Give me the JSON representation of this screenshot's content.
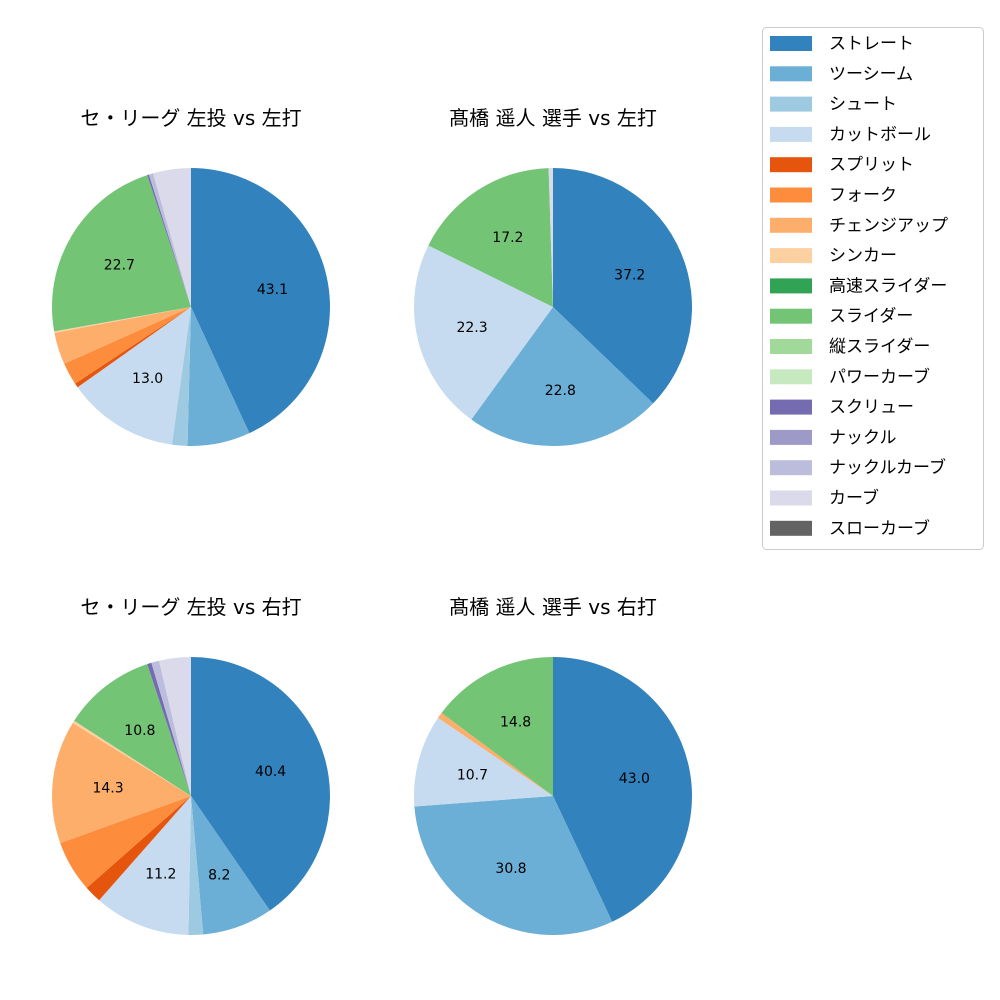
{
  "colors": {
    "ストレート": "#3182bd",
    "ツーシーム": "#6baed6",
    "シュート": "#9ecae1",
    "カットボール": "#c6dbef",
    "スプリット": "#e6550d",
    "フォーク": "#fd8d3c",
    "チェンジアップ": "#fdae6b",
    "シンカー": "#fdd0a2",
    "高速スライダー": "#31a354",
    "スライダー": "#74c476",
    "縦スライダー": "#a1d99b",
    "パワーカーブ": "#c7e9c0",
    "スクリュー": "#756bb1",
    "ナックル": "#9e9ac8",
    "ナックルカーブ": "#bcbddc",
    "カーブ": "#dadaeb",
    "スローカーブ": "#636363"
  },
  "legend": {
    "placement": "top-right",
    "entries": [
      "ストレート",
      "ツーシーム",
      "シュート",
      "カットボール",
      "スプリット",
      "フォーク",
      "チェンジアップ",
      "シンカー",
      "高速スライダー",
      "スライダー",
      "縦スライダー",
      "パワーカーブ",
      "スクリュー",
      "ナックル",
      "ナックルカーブ",
      "カーブ",
      "スローカーブ"
    ]
  },
  "chart_data": [
    {
      "type": "pie",
      "title": "セ・リーグ 左投 vs 左打",
      "start_angle": 90,
      "direction": "clockwise",
      "categories": [
        "ストレート",
        "ツーシーム",
        "シュート",
        "カットボール",
        "スプリット",
        "フォーク",
        "チェンジアップ",
        "シンカー",
        "スライダー",
        "スクリュー",
        "ナックルカーブ",
        "カーブ"
      ],
      "values": [
        43.1,
        7.3,
        1.8,
        13.0,
        0.5,
        2.6,
        3.7,
        0.2,
        22.7,
        0.2,
        0.5,
        4.4
      ],
      "labels": [
        "43.1",
        "",
        "",
        "13.0",
        "",
        "",
        "",
        "",
        "22.7",
        "",
        "",
        ""
      ]
    },
    {
      "type": "pie",
      "title": "髙橋 遥人 選手 vs 左打",
      "start_angle": 90,
      "direction": "clockwise",
      "categories": [
        "ストレート",
        "ツーシーム",
        "カットボール",
        "スライダー",
        "カーブ"
      ],
      "values": [
        37.2,
        22.8,
        22.3,
        17.2,
        0.5
      ],
      "labels": [
        "37.2",
        "22.8",
        "22.3",
        "17.2",
        ""
      ]
    },
    {
      "type": "pie",
      "title": "セ・リーグ 左投 vs 右打",
      "start_angle": 90,
      "direction": "clockwise",
      "categories": [
        "ストレート",
        "ツーシーム",
        "シュート",
        "カットボール",
        "スプリット",
        "フォーク",
        "チェンジアップ",
        "シンカー",
        "スライダー",
        "スクリュー",
        "ナックルカーブ",
        "カーブ"
      ],
      "values": [
        40.4,
        8.2,
        1.7,
        11.2,
        2.0,
        6.0,
        14.3,
        0.3,
        10.8,
        0.5,
        0.9,
        3.7
      ],
      "labels": [
        "40.4",
        "8.2",
        "",
        "11.2",
        "",
        "",
        "14.3",
        "",
        "10.8",
        "",
        "",
        ""
      ]
    },
    {
      "type": "pie",
      "title": "髙橋 遥人 選手 vs 右打",
      "start_angle": 90,
      "direction": "clockwise",
      "categories": [
        "ストレート",
        "ツーシーム",
        "カットボール",
        "チェンジアップ",
        "スライダー"
      ],
      "values": [
        43.0,
        30.8,
        10.7,
        0.7,
        14.8
      ],
      "labels": [
        "43.0",
        "30.8",
        "10.7",
        "",
        "14.8"
      ]
    }
  ]
}
